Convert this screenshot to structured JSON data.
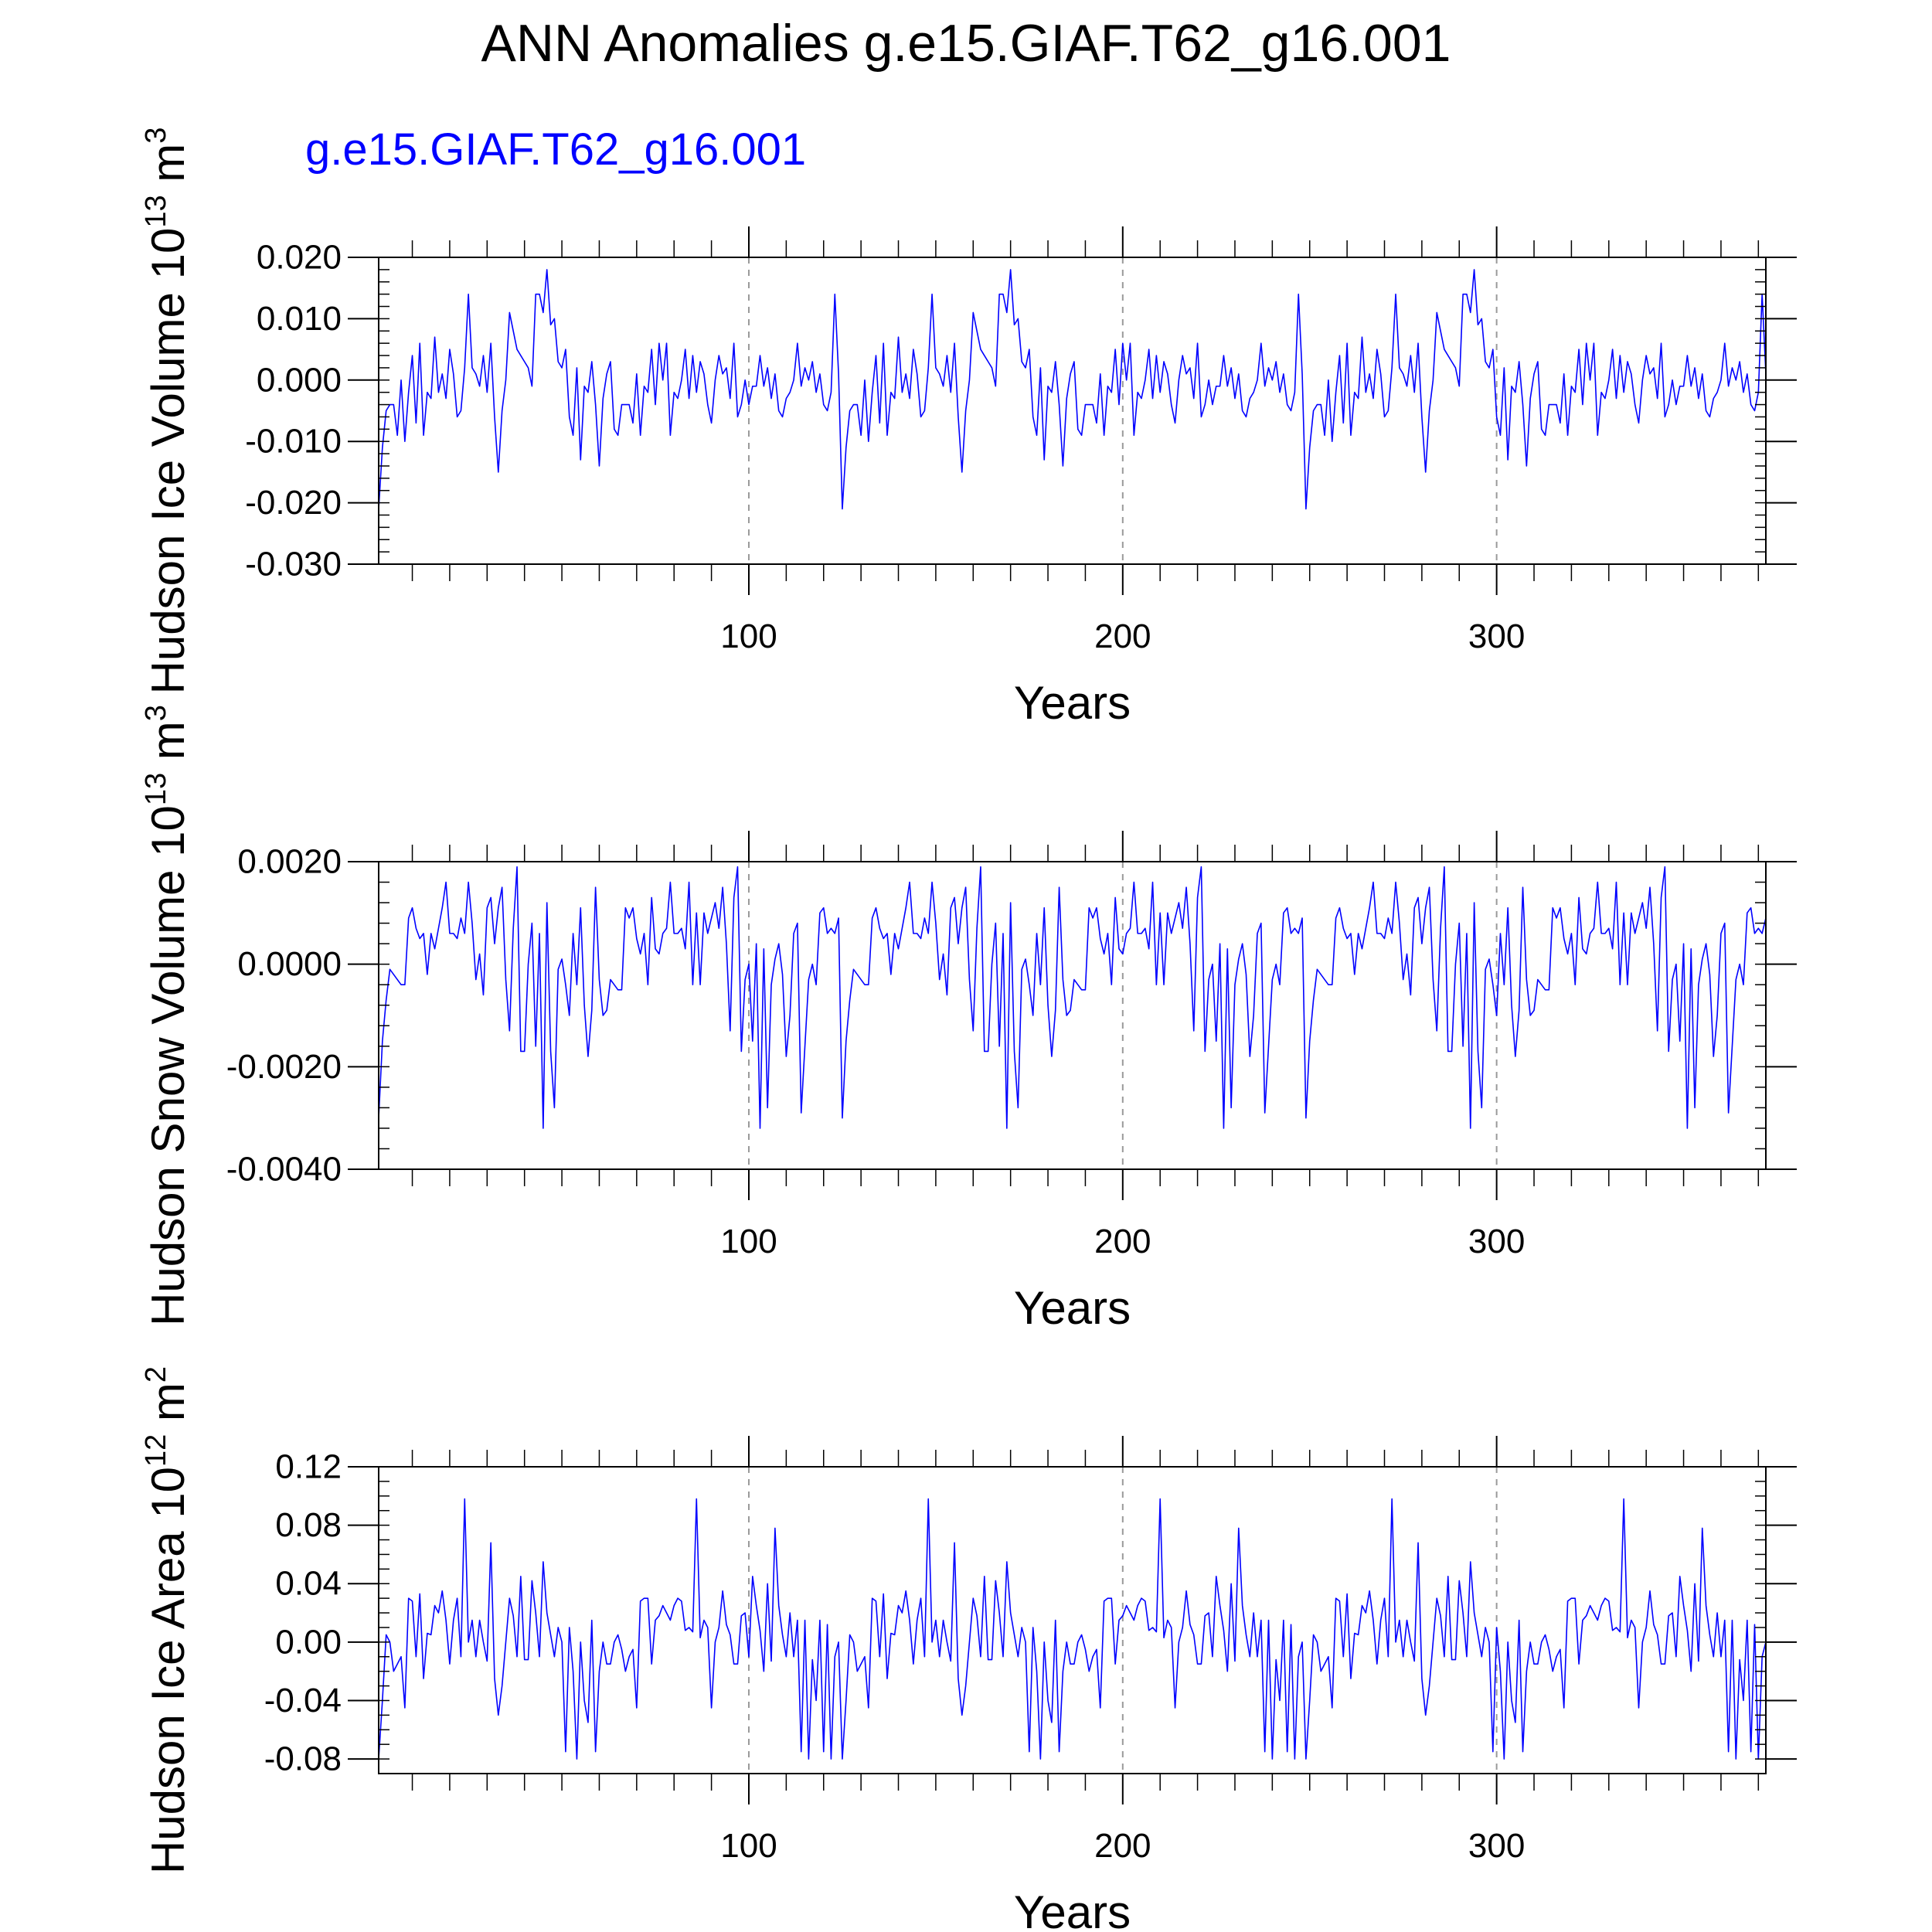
{
  "title": "ANN Anomalies g.e15.GIAF.T62_g16.001",
  "subtitle": "g.e15.GIAF.T62_g16.001",
  "series_color": "#0000ff",
  "chart_data": [
    {
      "type": "line",
      "ylabel_main": "Hudson Ice Volume 10",
      "ylabel_exp": "13",
      "ylabel_unit": " m",
      "ylabel_unit_exp": "3",
      "xlabel": "Years",
      "xlim": [
        1,
        372
      ],
      "ylim": [
        -0.03,
        0.02
      ],
      "yticks": [
        0.02,
        0.01,
        0.0,
        -0.01,
        -0.02,
        -0.03
      ],
      "ytick_labels": [
        "0.020",
        "0.010",
        "0.000",
        "-0.010",
        "-0.020",
        "-0.030"
      ],
      "yminor_step": 0.002,
      "xticks": [
        100,
        200,
        300
      ],
      "xtick_labels": [
        "100",
        "200",
        "300"
      ],
      "xminor_step": 10,
      "series": [
        {
          "name": "g.e15.GIAF.T62_g16.001",
          "segment_length": 124,
          "values": [
            -0.021,
            -0.011,
            -0.005,
            -0.004,
            -0.004,
            -0.009,
            0.0,
            -0.01,
            -0.002,
            0.004,
            -0.007,
            0.006,
            -0.009,
            -0.002,
            -0.003,
            0.007,
            -0.002,
            0.001,
            -0.003,
            0.005,
            0.001,
            -0.006,
            -0.005,
            0.002,
            0.014,
            0.002,
            0.001,
            -0.001,
            0.004,
            -0.002,
            0.006,
            -0.006,
            -0.015,
            -0.005,
            0.0,
            0.011,
            0.008,
            0.005,
            0.004,
            0.003,
            0.002,
            -0.001,
            0.014,
            0.014,
            0.011,
            0.018,
            0.009,
            0.01,
            0.003,
            0.002,
            0.005,
            -0.006,
            -0.009,
            0.002,
            -0.013,
            -0.001,
            -0.002,
            0.003,
            -0.004,
            -0.014,
            -0.003,
            0.001,
            0.003,
            -0.008,
            -0.009,
            -0.004,
            -0.004,
            -0.004,
            -0.007,
            0.001,
            -0.009,
            -0.001,
            -0.002,
            0.005,
            -0.004,
            0.006,
            0.0,
            0.006,
            -0.009,
            -0.002,
            -0.003,
            0.0,
            0.005,
            -0.003,
            0.004,
            -0.002,
            0.003,
            0.001,
            -0.004,
            -0.007,
            0.0,
            0.004,
            0.001,
            0.002,
            -0.003,
            0.006,
            -0.006,
            -0.004,
            0.0,
            -0.004,
            -0.001,
            -0.001,
            0.004,
            -0.001,
            0.002,
            -0.003,
            0.001,
            -0.005,
            -0.006,
            -0.003,
            -0.002,
            0.0,
            0.006,
            -0.001,
            0.002,
            0.0,
            0.003,
            -0.002,
            0.001,
            -0.004,
            -0.005,
            -0.002,
            0.014,
            0.001
          ]
        }
      ]
    },
    {
      "type": "line",
      "ylabel_main": "Hudson Snow Volume 10",
      "ylabel_exp": "13",
      "ylabel_unit": " m",
      "ylabel_unit_exp": "3",
      "xlabel": "Years",
      "xlim": [
        1,
        372
      ],
      "ylim": [
        -0.004,
        0.002
      ],
      "yticks": [
        0.002,
        0.0,
        -0.002,
        -0.004
      ],
      "ytick_labels": [
        "0.0020",
        "0.0000",
        "-0.0020",
        "-0.0040"
      ],
      "yminor_step": 0.0004,
      "xticks": [
        100,
        200,
        300
      ],
      "xtick_labels": [
        "100",
        "200",
        "300"
      ],
      "xminor_step": 10,
      "series": [
        {
          "name": "g.e15.GIAF.T62_g16.001",
          "segment_length": 124,
          "values": [
            -0.003,
            -0.0015,
            -0.0007,
            -0.0001,
            -0.0002,
            -0.0003,
            -0.0004,
            -0.0004,
            0.0009,
            0.0011,
            0.0007,
            0.0005,
            0.0006,
            -0.0002,
            0.0006,
            0.0003,
            0.0007,
            0.0011,
            0.0016,
            0.0006,
            0.0006,
            0.0005,
            0.0009,
            0.0006,
            0.0016,
            0.0008,
            -0.0003,
            0.0002,
            -0.0006,
            0.0011,
            0.0013,
            0.0004,
            0.0011,
            0.0015,
            -0.0003,
            -0.0013,
            0.0007,
            0.0019,
            -0.0017,
            -0.0017,
            0.0,
            0.0008,
            -0.0016,
            0.0006,
            -0.0032,
            0.0012,
            -0.0017,
            -0.0028,
            -0.0001,
            0.0001,
            -0.0004,
            -0.001,
            0.0006,
            -0.0004,
            0.0011,
            -0.0008,
            -0.0018,
            -0.0009,
            0.0015,
            -0.0003,
            -0.001,
            -0.0009,
            -0.0003,
            -0.0004,
            -0.0005,
            -0.0005,
            0.0011,
            0.0009,
            0.0011,
            0.0005,
            0.0002,
            0.0006,
            -0.0004,
            0.0013,
            0.0003,
            0.0002,
            0.0006,
            0.0007,
            0.0016,
            0.0006,
            0.0006,
            0.0007,
            0.0003,
            0.0016,
            -0.0004,
            0.001,
            -0.0004,
            0.001,
            0.0006,
            0.0009,
            0.0012,
            0.0007,
            0.0015,
            0.0004,
            -0.0013,
            0.0013,
            0.0019,
            -0.0017,
            -0.0003,
            0.0,
            -0.0015,
            0.0004,
            -0.0032,
            0.0003,
            -0.0028,
            -0.0004,
            0.0001,
            0.0004,
            -0.0002,
            -0.0018,
            -0.001,
            0.0006,
            0.0008,
            -0.0029,
            -0.0016,
            -0.0003,
            0.0,
            -0.0004,
            0.001,
            0.0011,
            0.0006,
            0.0007,
            0.0006,
            0.0009
          ]
        }
      ]
    },
    {
      "type": "line",
      "ylabel_main": "Hudson Ice Area 10",
      "ylabel_exp": "12",
      "ylabel_unit": " m",
      "ylabel_unit_exp": "2",
      "xlabel": "Years",
      "xlim": [
        1,
        372
      ],
      "ylim": [
        -0.09,
        0.12
      ],
      "yticks": [
        0.12,
        0.08,
        0.04,
        0.0,
        -0.04,
        -0.08
      ],
      "ytick_labels": [
        "0.12",
        "0.08",
        "0.04",
        "0.00",
        "-0.04",
        "-0.08"
      ],
      "yminor_step": 0.01,
      "xticks": [
        100,
        200,
        300
      ],
      "xtick_labels": [
        "100",
        "200",
        "300"
      ],
      "xminor_step": 10,
      "series": [
        {
          "name": "g.e15.GIAF.T62_g16.001",
          "segment_length": 124,
          "values": [
            -0.08,
            -0.04,
            0.005,
            0.0,
            -0.02,
            -0.015,
            -0.01,
            -0.045,
            0.03,
            0.028,
            -0.01,
            0.033,
            -0.025,
            0.006,
            0.005,
            0.025,
            0.02,
            0.035,
            0.015,
            -0.015,
            0.015,
            0.03,
            -0.01,
            0.098,
            0.0,
            0.015,
            -0.01,
            0.015,
            0.0,
            -0.013,
            0.068,
            -0.025,
            -0.05,
            -0.03,
            0.0,
            0.03,
            0.018,
            -0.01,
            0.045,
            -0.012,
            -0.012,
            0.042,
            0.02,
            -0.01,
            0.055,
            0.02,
            0.005,
            -0.01,
            0.01,
            0.0,
            -0.075,
            0.01,
            -0.02,
            -0.08,
            0.0,
            -0.04,
            -0.055,
            0.015,
            -0.075,
            -0.02,
            0.0,
            -0.015,
            -0.015,
            0.0,
            0.005,
            -0.005,
            -0.02,
            -0.01,
            -0.005,
            -0.045,
            0.028,
            0.03,
            0.03,
            -0.015,
            0.015,
            0.018,
            0.025,
            0.02,
            0.015,
            0.025,
            0.03,
            0.028,
            0.008,
            0.01,
            0.007,
            0.098,
            0.003,
            0.015,
            0.01,
            -0.045,
            0.0,
            0.01,
            0.035,
            0.012,
            0.005,
            -0.015,
            -0.015,
            0.018,
            0.02,
            -0.01,
            0.045,
            0.025,
            0.008,
            -0.02,
            0.04,
            -0.013,
            0.078,
            0.025,
            0.005,
            -0.01,
            0.02,
            -0.01,
            0.015,
            -0.075,
            0.015,
            -0.08,
            -0.012,
            -0.04,
            0.015,
            -0.075,
            0.012,
            -0.08,
            -0.01,
            0.0
          ]
        }
      ]
    }
  ]
}
